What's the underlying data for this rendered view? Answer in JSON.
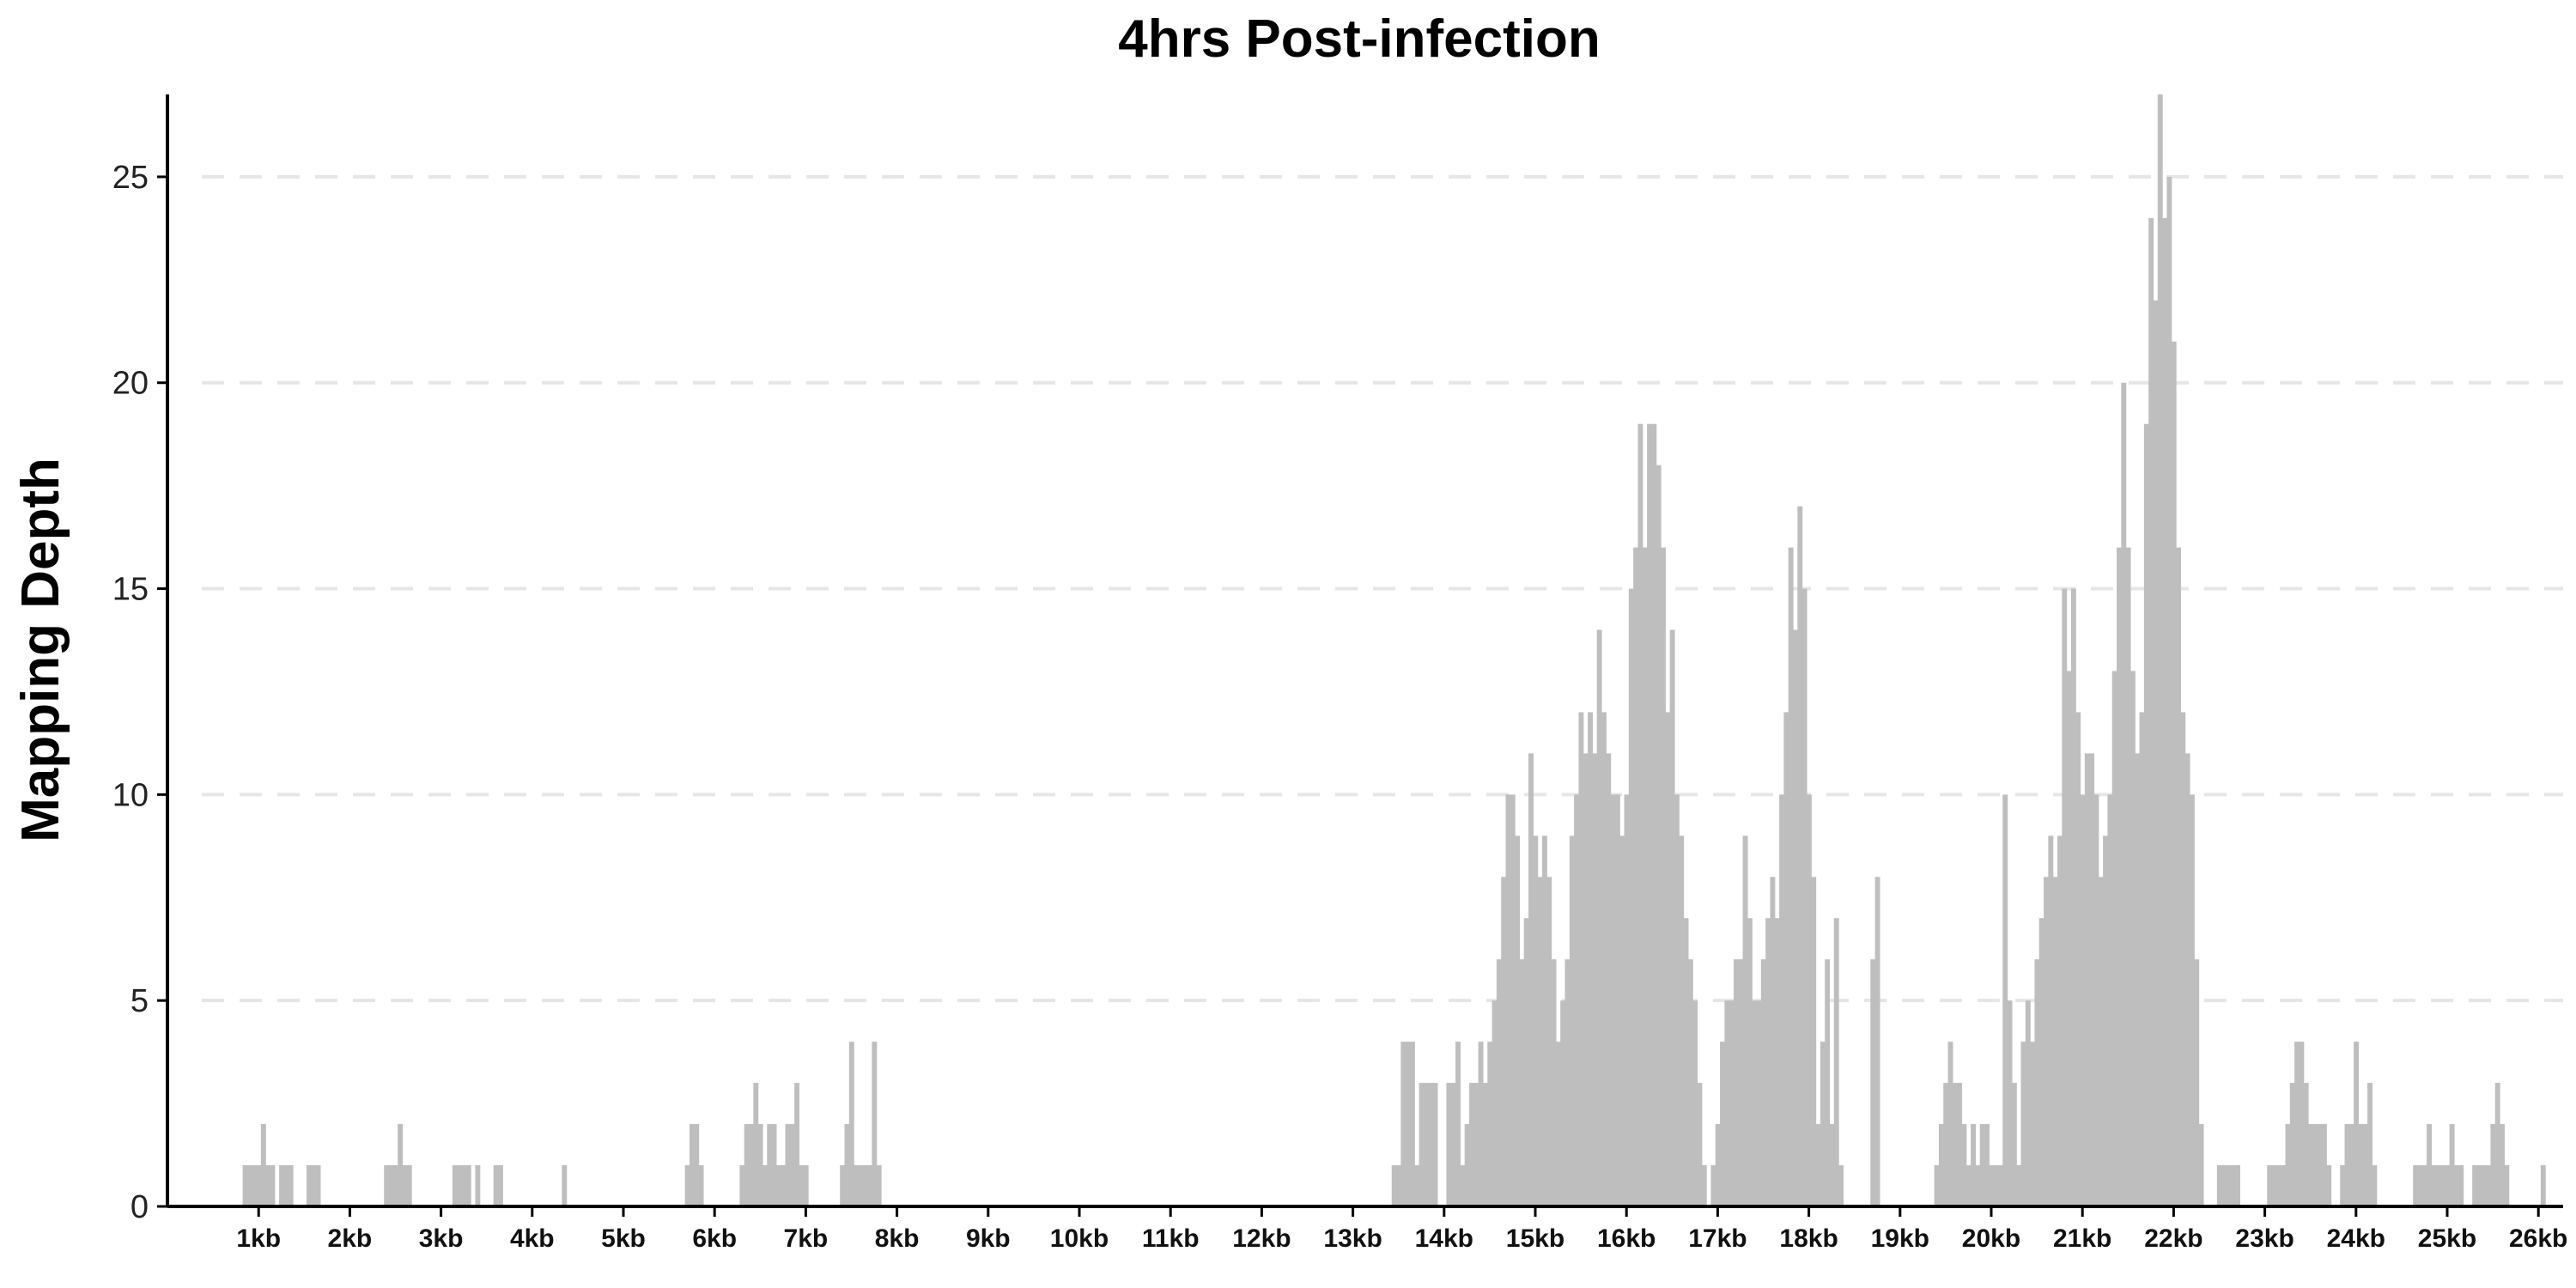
{
  "chart_data": {
    "type": "bar",
    "title": "4hrs Post-infection",
    "ylabel": "Mapping Depth",
    "xlabel": "",
    "ylim": [
      0,
      27
    ],
    "xlim_kb": [
      0,
      26.3
    ],
    "yticks": [
      0,
      5,
      10,
      15,
      20,
      25
    ],
    "xticks": [
      {
        "value": 1,
        "label": "1kb"
      },
      {
        "value": 2,
        "label": "2kb"
      },
      {
        "value": 3,
        "label": "3kb"
      },
      {
        "value": 4,
        "label": "4kb"
      },
      {
        "value": 5,
        "label": "5kb"
      },
      {
        "value": 6,
        "label": "6kb"
      },
      {
        "value": 7,
        "label": "7kb"
      },
      {
        "value": 8,
        "label": "8kb"
      },
      {
        "value": 9,
        "label": "9kb"
      },
      {
        "value": 10,
        "label": "10kb"
      },
      {
        "value": 11,
        "label": "11kb"
      },
      {
        "value": 12,
        "label": "12kb"
      },
      {
        "value": 13,
        "label": "13kb"
      },
      {
        "value": 14,
        "label": "14kb"
      },
      {
        "value": 15,
        "label": "15kb"
      },
      {
        "value": 16,
        "label": "16kb"
      },
      {
        "value": 17,
        "label": "17kb"
      },
      {
        "value": 18,
        "label": "18kb"
      },
      {
        "value": 19,
        "label": "19kb"
      },
      {
        "value": 20,
        "label": "20kb"
      },
      {
        "value": 21,
        "label": "21kb"
      },
      {
        "value": 22,
        "label": "22kb"
      },
      {
        "value": 23,
        "label": "23kb"
      },
      {
        "value": 24,
        "label": "24kb"
      },
      {
        "value": 25,
        "label": "25kb"
      },
      {
        "value": 26,
        "label": "26kb"
      }
    ],
    "grid": "horizontal dashed",
    "bar_color": "#bebebe",
    "bin_kb": 0.05,
    "series": [
      {
        "bins": [
          {
            "x": 0.85,
            "y": 1
          },
          {
            "x": 0.9,
            "y": 1
          },
          {
            "x": 0.95,
            "y": 1
          },
          {
            "x": 1.0,
            "y": 1
          },
          {
            "x": 1.05,
            "y": 2
          },
          {
            "x": 1.1,
            "y": 1
          },
          {
            "x": 1.15,
            "y": 1
          },
          {
            "x": 1.25,
            "y": 1
          },
          {
            "x": 1.3,
            "y": 1
          },
          {
            "x": 1.35,
            "y": 1
          },
          {
            "x": 1.55,
            "y": 1
          },
          {
            "x": 1.6,
            "y": 1
          },
          {
            "x": 1.65,
            "y": 1
          },
          {
            "x": 2.4,
            "y": 1
          },
          {
            "x": 2.45,
            "y": 1
          },
          {
            "x": 2.5,
            "y": 1
          },
          {
            "x": 2.55,
            "y": 2
          },
          {
            "x": 2.6,
            "y": 1
          },
          {
            "x": 2.65,
            "y": 1
          },
          {
            "x": 3.15,
            "y": 1
          },
          {
            "x": 3.2,
            "y": 1
          },
          {
            "x": 3.25,
            "y": 1
          },
          {
            "x": 3.3,
            "y": 1
          },
          {
            "x": 3.4,
            "y": 1
          },
          {
            "x": 3.6,
            "y": 1
          },
          {
            "x": 3.65,
            "y": 1
          },
          {
            "x": 4.35,
            "y": 1
          },
          {
            "x": 5.7,
            "y": 1
          },
          {
            "x": 5.75,
            "y": 2
          },
          {
            "x": 5.8,
            "y": 2
          },
          {
            "x": 5.85,
            "y": 1
          },
          {
            "x": 6.3,
            "y": 1
          },
          {
            "x": 6.35,
            "y": 2
          },
          {
            "x": 6.4,
            "y": 2
          },
          {
            "x": 6.45,
            "y": 3
          },
          {
            "x": 6.5,
            "y": 2
          },
          {
            "x": 6.55,
            "y": 1
          },
          {
            "x": 6.6,
            "y": 2
          },
          {
            "x": 6.65,
            "y": 2
          },
          {
            "x": 6.7,
            "y": 1
          },
          {
            "x": 6.75,
            "y": 1
          },
          {
            "x": 6.8,
            "y": 2
          },
          {
            "x": 6.85,
            "y": 2
          },
          {
            "x": 6.9,
            "y": 3
          },
          {
            "x": 6.95,
            "y": 1
          },
          {
            "x": 7.0,
            "y": 1
          },
          {
            "x": 7.4,
            "y": 1
          },
          {
            "x": 7.45,
            "y": 2
          },
          {
            "x": 7.5,
            "y": 4
          },
          {
            "x": 7.55,
            "y": 1
          },
          {
            "x": 7.6,
            "y": 1
          },
          {
            "x": 7.65,
            "y": 1
          },
          {
            "x": 7.7,
            "y": 1
          },
          {
            "x": 7.75,
            "y": 4
          },
          {
            "x": 7.8,
            "y": 1
          },
          {
            "x": 13.45,
            "y": 1
          },
          {
            "x": 13.5,
            "y": 1
          },
          {
            "x": 13.55,
            "y": 4
          },
          {
            "x": 13.6,
            "y": 4
          },
          {
            "x": 13.65,
            "y": 4
          },
          {
            "x": 13.7,
            "y": 1
          },
          {
            "x": 13.75,
            "y": 3
          },
          {
            "x": 13.8,
            "y": 3
          },
          {
            "x": 13.85,
            "y": 3
          },
          {
            "x": 13.9,
            "y": 3
          },
          {
            "x": 14.05,
            "y": 3
          },
          {
            "x": 14.1,
            "y": 3
          },
          {
            "x": 14.15,
            "y": 4
          },
          {
            "x": 14.2,
            "y": 1
          },
          {
            "x": 14.25,
            "y": 2
          },
          {
            "x": 14.3,
            "y": 3
          },
          {
            "x": 14.35,
            "y": 3
          },
          {
            "x": 14.4,
            "y": 4
          },
          {
            "x": 14.45,
            "y": 3
          },
          {
            "x": 14.5,
            "y": 4
          },
          {
            "x": 14.55,
            "y": 5
          },
          {
            "x": 14.6,
            "y": 6
          },
          {
            "x": 14.65,
            "y": 8
          },
          {
            "x": 14.7,
            "y": 10
          },
          {
            "x": 14.75,
            "y": 10
          },
          {
            "x": 14.8,
            "y": 9
          },
          {
            "x": 14.85,
            "y": 6
          },
          {
            "x": 14.9,
            "y": 7
          },
          {
            "x": 14.95,
            "y": 11
          },
          {
            "x": 15.0,
            "y": 9
          },
          {
            "x": 15.05,
            "y": 8
          },
          {
            "x": 15.1,
            "y": 9
          },
          {
            "x": 15.15,
            "y": 8
          },
          {
            "x": 15.2,
            "y": 6
          },
          {
            "x": 15.25,
            "y": 4
          },
          {
            "x": 15.3,
            "y": 5
          },
          {
            "x": 15.35,
            "y": 6
          },
          {
            "x": 15.4,
            "y": 9
          },
          {
            "x": 15.45,
            "y": 10
          },
          {
            "x": 15.5,
            "y": 12
          },
          {
            "x": 15.55,
            "y": 11
          },
          {
            "x": 15.6,
            "y": 12
          },
          {
            "x": 15.65,
            "y": 11
          },
          {
            "x": 15.7,
            "y": 14
          },
          {
            "x": 15.75,
            "y": 12
          },
          {
            "x": 15.8,
            "y": 11
          },
          {
            "x": 15.85,
            "y": 10
          },
          {
            "x": 15.9,
            "y": 10
          },
          {
            "x": 15.95,
            "y": 9
          },
          {
            "x": 16.0,
            "y": 10
          },
          {
            "x": 16.05,
            "y": 15
          },
          {
            "x": 16.1,
            "y": 16
          },
          {
            "x": 16.15,
            "y": 19
          },
          {
            "x": 16.2,
            "y": 16
          },
          {
            "x": 16.25,
            "y": 19
          },
          {
            "x": 16.3,
            "y": 19
          },
          {
            "x": 16.35,
            "y": 18
          },
          {
            "x": 16.4,
            "y": 16
          },
          {
            "x": 16.45,
            "y": 12
          },
          {
            "x": 16.5,
            "y": 14
          },
          {
            "x": 16.55,
            "y": 10
          },
          {
            "x": 16.6,
            "y": 9
          },
          {
            "x": 16.65,
            "y": 7
          },
          {
            "x": 16.7,
            "y": 6
          },
          {
            "x": 16.75,
            "y": 5
          },
          {
            "x": 16.8,
            "y": 3
          },
          {
            "x": 16.85,
            "y": 1
          },
          {
            "x": 16.95,
            "y": 1
          },
          {
            "x": 17.0,
            "y": 2
          },
          {
            "x": 17.05,
            "y": 4
          },
          {
            "x": 17.1,
            "y": 5
          },
          {
            "x": 17.15,
            "y": 5
          },
          {
            "x": 17.2,
            "y": 6
          },
          {
            "x": 17.25,
            "y": 6
          },
          {
            "x": 17.3,
            "y": 9
          },
          {
            "x": 17.35,
            "y": 7
          },
          {
            "x": 17.4,
            "y": 5
          },
          {
            "x": 17.45,
            "y": 5
          },
          {
            "x": 17.5,
            "y": 6
          },
          {
            "x": 17.55,
            "y": 7
          },
          {
            "x": 17.6,
            "y": 8
          },
          {
            "x": 17.65,
            "y": 7
          },
          {
            "x": 17.7,
            "y": 10
          },
          {
            "x": 17.75,
            "y": 12
          },
          {
            "x": 17.8,
            "y": 16
          },
          {
            "x": 17.85,
            "y": 14
          },
          {
            "x": 17.9,
            "y": 17
          },
          {
            "x": 17.95,
            "y": 15
          },
          {
            "x": 18.0,
            "y": 10
          },
          {
            "x": 18.05,
            "y": 8
          },
          {
            "x": 18.1,
            "y": 2
          },
          {
            "x": 18.15,
            "y": 4
          },
          {
            "x": 18.2,
            "y": 6
          },
          {
            "x": 18.25,
            "y": 2
          },
          {
            "x": 18.3,
            "y": 7
          },
          {
            "x": 18.35,
            "y": 1
          },
          {
            "x": 18.7,
            "y": 6
          },
          {
            "x": 18.75,
            "y": 8
          },
          {
            "x": 19.4,
            "y": 1
          },
          {
            "x": 19.45,
            "y": 2
          },
          {
            "x": 19.5,
            "y": 3
          },
          {
            "x": 19.55,
            "y": 4
          },
          {
            "x": 19.6,
            "y": 3
          },
          {
            "x": 19.65,
            "y": 3
          },
          {
            "x": 19.7,
            "y": 2
          },
          {
            "x": 19.75,
            "y": 1
          },
          {
            "x": 19.8,
            "y": 2
          },
          {
            "x": 19.85,
            "y": 1
          },
          {
            "x": 19.9,
            "y": 2
          },
          {
            "x": 19.95,
            "y": 2
          },
          {
            "x": 20.0,
            "y": 1
          },
          {
            "x": 20.05,
            "y": 1
          },
          {
            "x": 20.1,
            "y": 1
          },
          {
            "x": 20.15,
            "y": 10
          },
          {
            "x": 20.2,
            "y": 5
          },
          {
            "x": 20.25,
            "y": 3
          },
          {
            "x": 20.3,
            "y": 1
          },
          {
            "x": 20.35,
            "y": 4
          },
          {
            "x": 20.4,
            "y": 5
          },
          {
            "x": 20.45,
            "y": 4
          },
          {
            "x": 20.5,
            "y": 6
          },
          {
            "x": 20.55,
            "y": 7
          },
          {
            "x": 20.6,
            "y": 8
          },
          {
            "x": 20.65,
            "y": 9
          },
          {
            "x": 20.7,
            "y": 8
          },
          {
            "x": 20.75,
            "y": 9
          },
          {
            "x": 20.8,
            "y": 15
          },
          {
            "x": 20.85,
            "y": 13
          },
          {
            "x": 20.9,
            "y": 15
          },
          {
            "x": 20.95,
            "y": 12
          },
          {
            "x": 21.0,
            "y": 10
          },
          {
            "x": 21.05,
            "y": 11
          },
          {
            "x": 21.1,
            "y": 11
          },
          {
            "x": 21.15,
            "y": 10
          },
          {
            "x": 21.2,
            "y": 8
          },
          {
            "x": 21.25,
            "y": 9
          },
          {
            "x": 21.3,
            "y": 10
          },
          {
            "x": 21.35,
            "y": 13
          },
          {
            "x": 21.4,
            "y": 16
          },
          {
            "x": 21.45,
            "y": 20
          },
          {
            "x": 21.5,
            "y": 16
          },
          {
            "x": 21.55,
            "y": 13
          },
          {
            "x": 21.6,
            "y": 11
          },
          {
            "x": 21.65,
            "y": 12
          },
          {
            "x": 21.7,
            "y": 19
          },
          {
            "x": 21.75,
            "y": 24
          },
          {
            "x": 21.8,
            "y": 22
          },
          {
            "x": 21.85,
            "y": 27
          },
          {
            "x": 21.9,
            "y": 24
          },
          {
            "x": 21.95,
            "y": 25
          },
          {
            "x": 22.0,
            "y": 21
          },
          {
            "x": 22.05,
            "y": 16
          },
          {
            "x": 22.1,
            "y": 12
          },
          {
            "x": 22.15,
            "y": 11
          },
          {
            "x": 22.2,
            "y": 10
          },
          {
            "x": 22.25,
            "y": 6
          },
          {
            "x": 22.3,
            "y": 2
          },
          {
            "x": 22.5,
            "y": 1
          },
          {
            "x": 22.55,
            "y": 1
          },
          {
            "x": 22.6,
            "y": 1
          },
          {
            "x": 22.65,
            "y": 1
          },
          {
            "x": 22.7,
            "y": 1
          },
          {
            "x": 23.05,
            "y": 1
          },
          {
            "x": 23.1,
            "y": 1
          },
          {
            "x": 23.15,
            "y": 1
          },
          {
            "x": 23.2,
            "y": 1
          },
          {
            "x": 23.25,
            "y": 2
          },
          {
            "x": 23.3,
            "y": 3
          },
          {
            "x": 23.35,
            "y": 4
          },
          {
            "x": 23.4,
            "y": 4
          },
          {
            "x": 23.45,
            "y": 3
          },
          {
            "x": 23.5,
            "y": 2
          },
          {
            "x": 23.55,
            "y": 2
          },
          {
            "x": 23.6,
            "y": 2
          },
          {
            "x": 23.65,
            "y": 2
          },
          {
            "x": 23.7,
            "y": 1
          },
          {
            "x": 23.85,
            "y": 1
          },
          {
            "x": 23.9,
            "y": 2
          },
          {
            "x": 23.95,
            "y": 2
          },
          {
            "x": 24.0,
            "y": 4
          },
          {
            "x": 24.05,
            "y": 2
          },
          {
            "x": 24.1,
            "y": 2
          },
          {
            "x": 24.15,
            "y": 3
          },
          {
            "x": 24.2,
            "y": 1
          },
          {
            "x": 24.65,
            "y": 1
          },
          {
            "x": 24.7,
            "y": 1
          },
          {
            "x": 24.75,
            "y": 1
          },
          {
            "x": 24.8,
            "y": 2
          },
          {
            "x": 24.85,
            "y": 1
          },
          {
            "x": 24.9,
            "y": 1
          },
          {
            "x": 24.95,
            "y": 1
          },
          {
            "x": 25.0,
            "y": 1
          },
          {
            "x": 25.05,
            "y": 2
          },
          {
            "x": 25.1,
            "y": 1
          },
          {
            "x": 25.15,
            "y": 1
          },
          {
            "x": 25.3,
            "y": 1
          },
          {
            "x": 25.35,
            "y": 1
          },
          {
            "x": 25.4,
            "y": 1
          },
          {
            "x": 25.45,
            "y": 1
          },
          {
            "x": 25.5,
            "y": 2
          },
          {
            "x": 25.55,
            "y": 3
          },
          {
            "x": 25.6,
            "y": 2
          },
          {
            "x": 25.65,
            "y": 1
          },
          {
            "x": 26.05,
            "y": 1
          }
        ]
      }
    ]
  }
}
